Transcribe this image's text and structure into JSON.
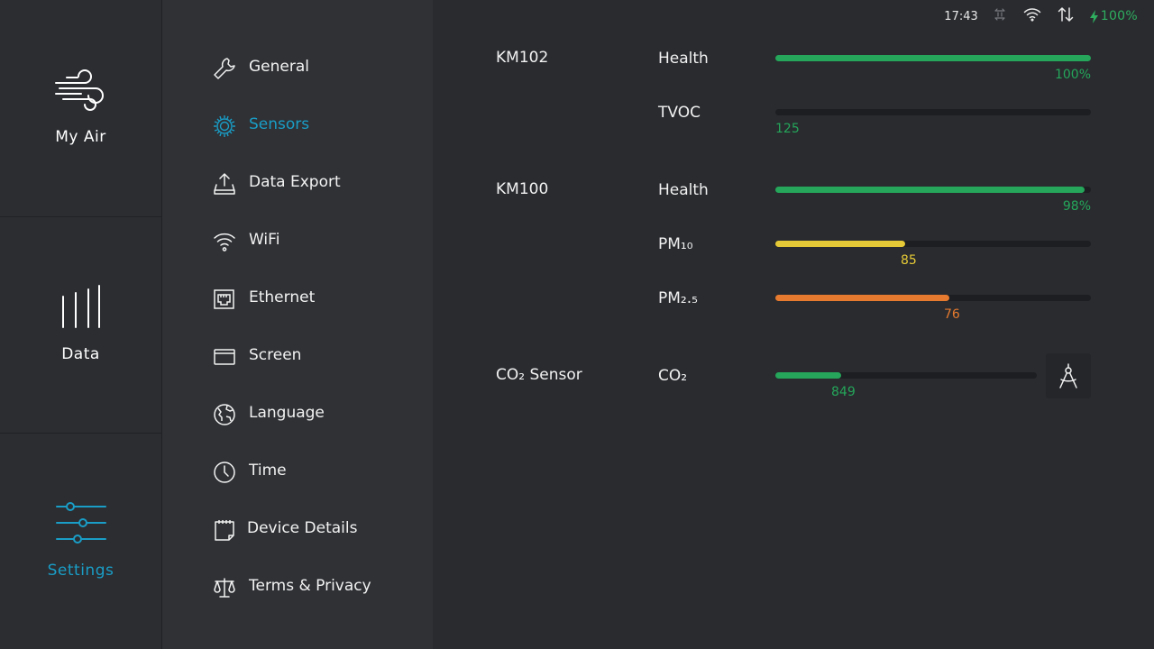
{
  "status_bar": {
    "time": "17:43",
    "battery": "100%",
    "icons": [
      "sync-off-icon",
      "wifi-icon",
      "data-transfer-icon",
      "charging-bolt-icon"
    ]
  },
  "nav_rail": {
    "items": [
      {
        "label": "My Air",
        "icon": "wind-icon",
        "active": false
      },
      {
        "label": "Data",
        "icon": "bars-icon",
        "active": false
      },
      {
        "label": "Settings",
        "icon": "sliders-icon",
        "active": true
      }
    ]
  },
  "settings_menu": {
    "items": [
      {
        "label": "General",
        "icon": "wrench-icon"
      },
      {
        "label": "Sensors",
        "icon": "chip-icon",
        "active": true
      },
      {
        "label": "Data Export",
        "icon": "upload-tray-icon"
      },
      {
        "label": "WiFi",
        "icon": "wifi-icon"
      },
      {
        "label": "Ethernet",
        "icon": "ethernet-port-icon"
      },
      {
        "label": "Screen",
        "icon": "screen-icon"
      },
      {
        "label": "Language",
        "icon": "globe-icon"
      },
      {
        "label": "Time",
        "icon": "clock-icon"
      },
      {
        "label": "Device Details",
        "icon": "notepad-icon"
      },
      {
        "label": "Terms & Privacy",
        "icon": "scales-icon"
      }
    ]
  },
  "sensors": {
    "devices": [
      {
        "name": "KM102",
        "metrics": [
          {
            "name": "Health",
            "value_text": "100%",
            "level": 1.0,
            "color": "#25a65a"
          },
          {
            "name": "TVOC",
            "value_text": "125",
            "level": 0.0,
            "color": "#25a65a"
          }
        ]
      },
      {
        "name": "KM100",
        "metrics": [
          {
            "name": "Health",
            "value_text": "98%",
            "level": 0.98,
            "color": "#25a65a"
          },
          {
            "name": "PM₁₀",
            "value_text": "85",
            "level": 0.41,
            "color": "#e5c936"
          },
          {
            "name": "PM₂.₅",
            "value_text": "76",
            "level": 0.55,
            "color": "#e67a2e"
          }
        ]
      },
      {
        "name": "CO₂ Sensor",
        "metrics": [
          {
            "name": "CO₂",
            "value_text": "849",
            "level": 0.25,
            "color": "#25a65a"
          }
        ],
        "action_icon": "compass-calibrate-icon"
      }
    ]
  },
  "colors": {
    "accent": "#1a9dc6",
    "good": "#25a65a",
    "moderate": "#e5c936",
    "poor": "#e67a2e"
  }
}
